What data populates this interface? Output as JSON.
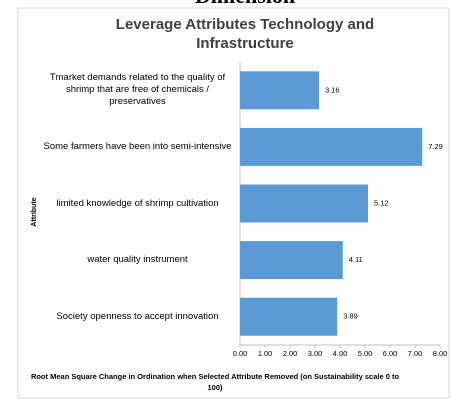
{
  "heading": "Dimension",
  "chart_data": {
    "type": "bar",
    "orientation": "horizontal",
    "title": "Leverage Attributes Technology and Infrastructure",
    "categories": [
      "Tmarket demands related to the quality of shrimp that are free of chemicals / preservatives",
      "Some farmers have been into semi-intensive",
      "limited knowledge of shrimp cultivation",
      "water quality instrument",
      "Society openness to accept innovation"
    ],
    "values": [
      3.16,
      7.29,
      5.12,
      4.11,
      3.89
    ],
    "color": "#5b9bd5",
    "xlim": [
      0,
      8
    ],
    "xticks": [
      {
        "value": 0,
        "label": "0.00"
      },
      {
        "value": 1,
        "label": "1.00"
      },
      {
        "value": 2,
        "label": "2.00"
      },
      {
        "value": 3,
        "label": "3.00"
      },
      {
        "value": 4,
        "label": "4.00"
      },
      {
        "value": 5,
        "label": "5.00"
      },
      {
        "value": 6,
        "label": "6.00"
      },
      {
        "value": 7,
        "label": "7.00"
      },
      {
        "value": 8,
        "label": "8.00"
      }
    ],
    "xlabel": "Root Mean Square Change in Ordination when Selected Attribute Removed (on Sustainability scale 0 to 100)",
    "ylabel": "Attribute"
  }
}
